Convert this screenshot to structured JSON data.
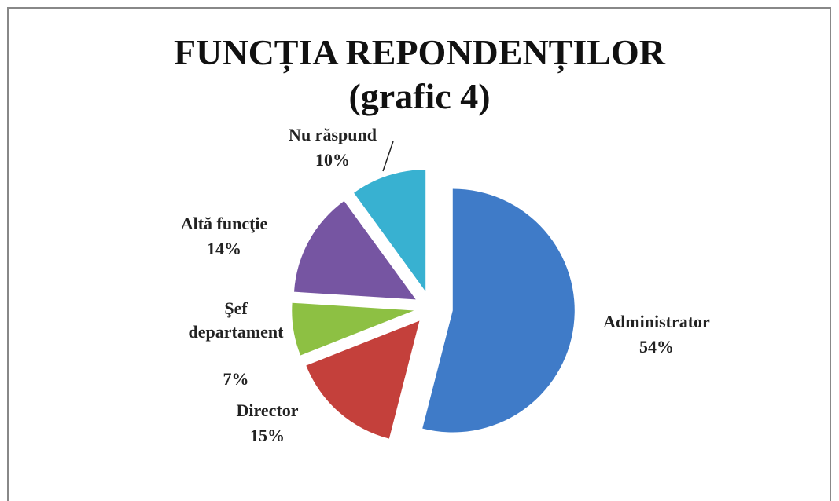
{
  "chart_data": {
    "type": "pie",
    "title": "FUNCȚIA REPONDENȚILOR",
    "subtitle": "(grafic 4)",
    "categories": [
      "Administrator",
      "Director",
      "Şef departament",
      "Altă funcţie",
      "Nu răspund"
    ],
    "values": [
      54,
      15,
      7,
      14,
      10
    ],
    "value_labels": [
      "54%",
      "15%",
      "7%",
      "14%",
      "10%"
    ],
    "colors": [
      "#3f7bc8",
      "#c4403b",
      "#8dc043",
      "#7655a2",
      "#38b1d1"
    ]
  }
}
